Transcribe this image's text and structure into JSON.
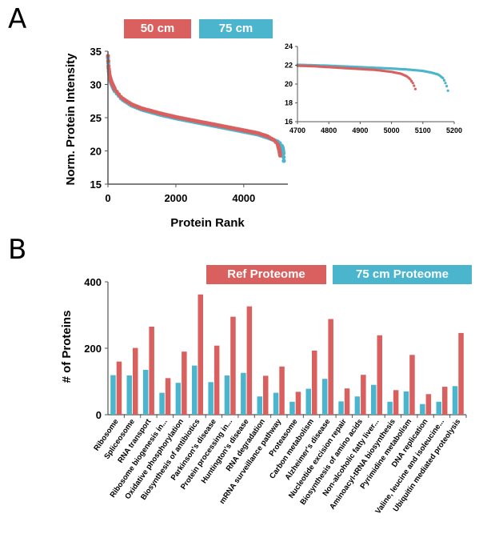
{
  "panels": {
    "a_label": "A",
    "b_label": "B"
  },
  "colors": {
    "red": "#D9605E",
    "blue": "#4BB5CD"
  },
  "chart_data": [
    {
      "type": "scatter",
      "title": "",
      "xlabel": "Protein Rank",
      "ylabel": "Norm. Protein Intensity",
      "xlim": [
        0,
        5300
      ],
      "ylim": [
        15,
        35
      ],
      "xticks": [
        "0",
        "2000",
        "4000"
      ],
      "yticks": [
        "15",
        "20",
        "25",
        "30",
        "35"
      ],
      "legend_position": "top",
      "series": [
        {
          "name": "50 cm",
          "color": "#D9605E",
          "points": [
            [
              1,
              34.3
            ],
            [
              20,
              32.5
            ],
            [
              50,
              31.3
            ],
            [
              100,
              30.4
            ],
            [
              200,
              29.3
            ],
            [
              400,
              28.0
            ],
            [
              700,
              27.0
            ],
            [
              1000,
              26.4
            ],
            [
              1500,
              25.7
            ],
            [
              2000,
              25.1
            ],
            [
              2500,
              24.6
            ],
            [
              3000,
              24.1
            ],
            [
              3500,
              23.6
            ],
            [
              4000,
              23.1
            ],
            [
              4400,
              22.7
            ],
            [
              4700,
              22.2
            ],
            [
              4900,
              21.6
            ],
            [
              5000,
              21.0
            ],
            [
              5050,
              20.1
            ],
            [
              5075,
              19.3
            ]
          ]
        },
        {
          "name": "75 cm",
          "color": "#4BB5CD",
          "points": [
            [
              1,
              34.0
            ],
            [
              20,
              32.2
            ],
            [
              50,
              31.0
            ],
            [
              100,
              30.1
            ],
            [
              200,
              29.0
            ],
            [
              400,
              27.8
            ],
            [
              700,
              26.8
            ],
            [
              1000,
              26.2
            ],
            [
              1500,
              25.5
            ],
            [
              2000,
              24.9
            ],
            [
              2500,
              24.4
            ],
            [
              3000,
              23.9
            ],
            [
              3500,
              23.4
            ],
            [
              4000,
              22.9
            ],
            [
              4400,
              22.5
            ],
            [
              4700,
              22.0
            ],
            [
              4900,
              21.6
            ],
            [
              5000,
              21.4
            ],
            [
              5100,
              21.0
            ],
            [
              5150,
              20.4
            ],
            [
              5170,
              19.6
            ],
            [
              5180,
              18.5
            ]
          ]
        }
      ],
      "inset": {
        "xlim": [
          4700,
          5200
        ],
        "ylim": [
          16,
          24
        ],
        "xticks": [
          "4700",
          "4800",
          "4900",
          "5000",
          "5100",
          "5200"
        ],
        "yticks": [
          "16",
          "18",
          "20",
          "22",
          "24"
        ],
        "series": [
          {
            "name": "50 cm",
            "color": "#D9605E",
            "points": [
              [
                4700,
                21.95
              ],
              [
                4750,
                21.9
              ],
              [
                4800,
                21.8
              ],
              [
                4850,
                21.7
              ],
              [
                4900,
                21.6
              ],
              [
                4950,
                21.5
              ],
              [
                5000,
                21.3
              ],
              [
                5030,
                21.1
              ],
              [
                5050,
                20.8
              ],
              [
                5060,
                20.5
              ],
              [
                5070,
                20.0
              ],
              [
                5078,
                19.3
              ]
            ]
          },
          {
            "name": "75 cm",
            "color": "#4BB5CD",
            "points": [
              [
                4700,
                22.05
              ],
              [
                4800,
                21.95
              ],
              [
                4900,
                21.8
              ],
              [
                5000,
                21.65
              ],
              [
                5050,
                21.55
              ],
              [
                5100,
                21.4
              ],
              [
                5130,
                21.2
              ],
              [
                5150,
                21.0
              ],
              [
                5165,
                20.6
              ],
              [
                5175,
                19.9
              ],
              [
                5180,
                19.3
              ],
              [
                5182,
                18.4
              ]
            ]
          }
        ]
      }
    },
    {
      "type": "bar",
      "title": "",
      "xlabel": "",
      "ylabel": "# of Proteins",
      "ylim": [
        0,
        400
      ],
      "yticks": [
        "0",
        "200",
        "400"
      ],
      "legend_position": "top",
      "categories": [
        "Ribosome",
        "Spliceosome",
        "RNA transport",
        "Ribosome biogenesis in...",
        "Oxidative phosphorylation",
        "Biosynthesis of antibiotics",
        "Parkinson's disease",
        "Protein processing in...",
        "Huntington's disease",
        "RNA degradation",
        "mRNA surveillance pathway",
        "Proteasome",
        "Carbon metabolism",
        "Alzheimer's disease",
        "Nucleotide excision repair",
        "Biosynthesis of amino acids",
        "Non-alcoholic fatty liver...",
        "Aminoacyl-tRNA biosynthesis",
        "Pyrimidine metabolism",
        "DNA replication",
        "Valine, leucine and isoleucine...",
        "Ubiquitin mediated proteolysis"
      ],
      "series": [
        {
          "name": "75 cm Proteome",
          "color": "#4BB5CD",
          "values": [
            119,
            118,
            135,
            66,
            96,
            148,
            98,
            118,
            126,
            55,
            66,
            39,
            78,
            108,
            40,
            55,
            90,
            39,
            70,
            32,
            39,
            86
          ]
        },
        {
          "name": "Ref Proteome",
          "color": "#D9605E",
          "values": [
            160,
            201,
            265,
            110,
            190,
            362,
            208,
            295,
            326,
            117,
            145,
            69,
            193,
            288,
            79,
            120,
            239,
            74,
            180,
            62,
            84,
            246
          ]
        }
      ]
    }
  ]
}
